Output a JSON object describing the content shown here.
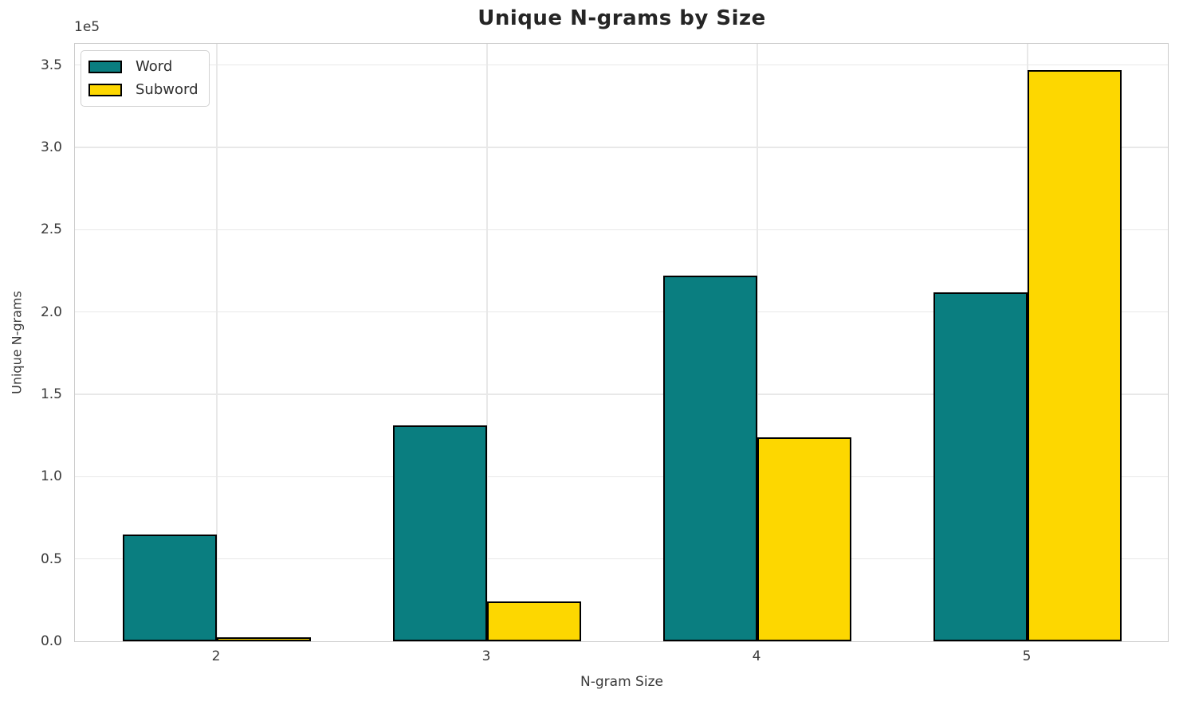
{
  "chart_data": {
    "type": "bar",
    "title": "Unique N-grams by Size",
    "xlabel": "N-gram Size",
    "ylabel": "Unique N-grams",
    "y_offset_text": "1e5",
    "categories": [
      "2",
      "3",
      "4",
      "5"
    ],
    "series": [
      {
        "name": "Word",
        "color": "#0a7e80",
        "values": [
          65000,
          131000,
          222000,
          212000
        ]
      },
      {
        "name": "Subword",
        "color": "#fdd700",
        "values": [
          2500,
          24000,
          124000,
          347000
        ]
      }
    ],
    "bar_edge_color": "#000000",
    "ylim": [
      0,
      363800
    ],
    "yticks": [
      0,
      50000,
      100000,
      150000,
      200000,
      250000,
      300000,
      350000
    ],
    "ytick_labels": [
      "0.0",
      "0.5",
      "1.0",
      "1.5",
      "2.0",
      "2.5",
      "3.0",
      "3.5"
    ],
    "grid": true,
    "legend": {
      "position": "upper left",
      "entries": [
        "Word",
        "Subword"
      ]
    }
  },
  "colors": {
    "background": "#ffffff",
    "gridline": "#e8e8e8",
    "spine": "#cccccc",
    "title_text": "#252525",
    "tick_text": "#3a3a3a"
  }
}
